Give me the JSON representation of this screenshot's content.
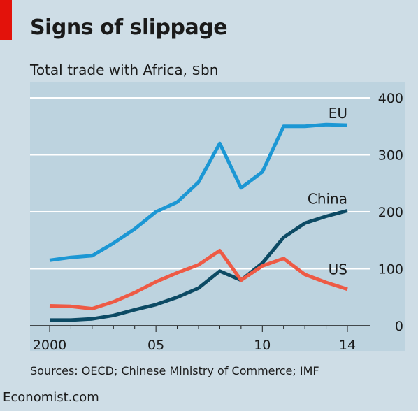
{
  "title": "Signs of slippage",
  "subtitle": "Total trade with Africa, $bn",
  "source": "Sources: OECD; Chinese Ministry of Commerce; IMF",
  "brand": "Economist.com",
  "colors": {
    "background": "#cedde6",
    "plot_background": "#bdd3df",
    "EU": "#1c97d4",
    "China": "#0c4a64",
    "US": "#ee5a45",
    "accent": "#e3120b"
  },
  "chart_data": {
    "type": "line",
    "title": "Signs of slippage",
    "ylabel": "Total trade with Africa, $bn",
    "xlim": [
      2000,
      2014
    ],
    "ylim": [
      0,
      400
    ],
    "x_tick_labels": [
      {
        "x": 2000,
        "label": "2000"
      },
      {
        "x": 2005,
        "label": "05"
      },
      {
        "x": 2010,
        "label": "10"
      },
      {
        "x": 2014,
        "label": "14"
      }
    ],
    "y_ticks": [
      0,
      100,
      200,
      300,
      400
    ],
    "grid": true,
    "y_axis_side": "right",
    "x": [
      2000,
      2001,
      2002,
      2003,
      2004,
      2005,
      2006,
      2007,
      2008,
      2009,
      2010,
      2011,
      2012,
      2013,
      2014
    ],
    "series": [
      {
        "name": "EU",
        "values": [
          115,
          120,
          123,
          145,
          170,
          200,
          217,
          252,
          320,
          242,
          270,
          350,
          350,
          353,
          352
        ]
      },
      {
        "name": "China",
        "values": [
          10,
          10,
          12,
          18,
          28,
          37,
          50,
          66,
          96,
          80,
          110,
          155,
          180,
          192,
          202
        ]
      },
      {
        "name": "US",
        "values": [
          35,
          34,
          30,
          42,
          58,
          77,
          93,
          107,
          132,
          80,
          105,
          118,
          90,
          76,
          64
        ]
      }
    ],
    "line_labels": [
      {
        "series": "EU",
        "text": "EU"
      },
      {
        "series": "China",
        "text": "China"
      },
      {
        "series": "US",
        "text": "US"
      }
    ]
  }
}
